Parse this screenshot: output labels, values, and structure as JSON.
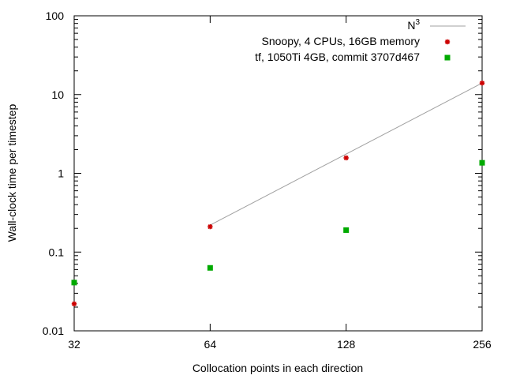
{
  "chart_data": {
    "type": "scatter",
    "xlabel": "Collocation points in each direction",
    "ylabel": "Wall-clock time per timestep",
    "x_scale": "log",
    "y_scale": "log",
    "xlim": [
      32,
      256
    ],
    "ylim": [
      0.01,
      100
    ],
    "x_ticks": [
      32,
      64,
      128,
      256
    ],
    "x_tick_labels": [
      "32",
      "64",
      "128",
      "256"
    ],
    "y_ticks": [
      0.01,
      0.1,
      1,
      10,
      100
    ],
    "y_tick_labels": [
      "0.01",
      "0.1",
      "1",
      "10",
      "100"
    ],
    "grid": false,
    "legend_position": "top-right",
    "reference_line": {
      "name_base": "N",
      "name_exponent": "3",
      "color": "#a0a0a0",
      "x": [
        64,
        256
      ],
      "y": [
        0.22,
        14
      ]
    },
    "series": [
      {
        "name": "Snoopy, 4 CPUs, 16GB memory",
        "marker": "star",
        "color": "#cc0000",
        "points": [
          {
            "x": 32,
            "y": 0.022
          },
          {
            "x": 64,
            "y": 0.21
          },
          {
            "x": 128,
            "y": 1.57
          },
          {
            "x": 256,
            "y": 14
          }
        ]
      },
      {
        "name": "tf, 1050Ti 4GB, commit 3707d467",
        "marker": "square",
        "color": "#00aa00",
        "points": [
          {
            "x": 32,
            "y": 0.041
          },
          {
            "x": 64,
            "y": 0.063
          },
          {
            "x": 128,
            "y": 0.19
          },
          {
            "x": 256,
            "y": 1.36
          }
        ]
      }
    ]
  }
}
